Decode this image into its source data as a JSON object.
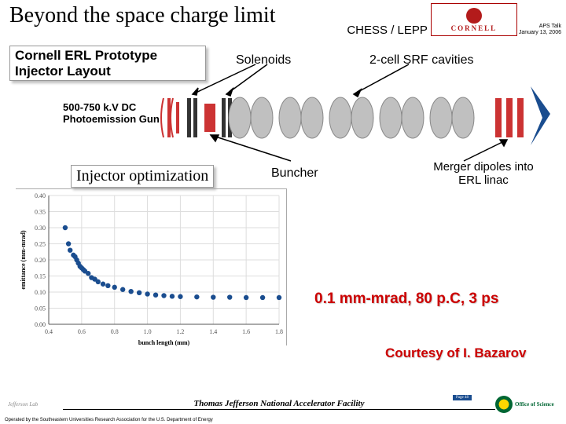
{
  "header": {
    "title": "Beyond the space charge limit",
    "chess": "CHESS / LEPP",
    "cornell": "CORNELL",
    "aps_line1": "APS Talk",
    "aps_line2": "January 13, 2006"
  },
  "labels": {
    "erl_title": "Cornell ERL Prototype Injector Layout",
    "solenoids": "Solenoids",
    "srf": "2-cell SRF cavities",
    "gun": "500-750 k.V DC Photoemission Gun",
    "optim": "Injector optimization",
    "buncher": "Buncher",
    "merger": "Merger dipoles into ERL linac",
    "result": "0.1 mm-mrad, 80 p.C, 3 ps",
    "courtesy": "Courtesy of I. Bazarov"
  },
  "chart": {
    "xlabel": "bunch length (mm)",
    "ylabel": "emittance (mm-mrad)",
    "xlim": [
      0.4,
      1.8
    ],
    "xtick_step": 0.2,
    "ylim": [
      0.0,
      0.4
    ],
    "ytick_step": 0.05,
    "points": [
      [
        0.5,
        0.3
      ],
      [
        0.52,
        0.25
      ],
      [
        0.53,
        0.23
      ],
      [
        0.55,
        0.215
      ],
      [
        0.56,
        0.21
      ],
      [
        0.57,
        0.2
      ],
      [
        0.58,
        0.19
      ],
      [
        0.59,
        0.18
      ],
      [
        0.6,
        0.175
      ],
      [
        0.61,
        0.17
      ],
      [
        0.62,
        0.165
      ],
      [
        0.64,
        0.158
      ],
      [
        0.66,
        0.145
      ],
      [
        0.68,
        0.14
      ],
      [
        0.7,
        0.132
      ],
      [
        0.73,
        0.125
      ],
      [
        0.76,
        0.12
      ],
      [
        0.8,
        0.115
      ],
      [
        0.85,
        0.108
      ],
      [
        0.9,
        0.102
      ],
      [
        0.95,
        0.098
      ],
      [
        1.0,
        0.094
      ],
      [
        1.05,
        0.091
      ],
      [
        1.1,
        0.089
      ],
      [
        1.15,
        0.087
      ],
      [
        1.2,
        0.086
      ],
      [
        1.3,
        0.085
      ],
      [
        1.4,
        0.084
      ],
      [
        1.5,
        0.084
      ],
      [
        1.6,
        0.083
      ],
      [
        1.7,
        0.083
      ],
      [
        1.8,
        0.083
      ]
    ],
    "point_color": "#1a4d8f",
    "grid_color": "#dddddd",
    "axis_color": "#555555",
    "label_fontsize": 8
  },
  "diagram": {
    "gun_color": "#cc3333",
    "solenoid_color": "#333333",
    "buncher_color": "#1a4d8f",
    "cavity_fill": "#c0c0c0",
    "cavity_stroke": "#888888",
    "dipole_color": "#cc3333",
    "arrow_color": "#000000"
  },
  "footer": {
    "center": "Thomas Jefferson National Accelerator Facility",
    "sub": "Operated by the Southeastern Universities Research Association for the U.S. Department of Energy",
    "jlab": "Jefferson Lab",
    "doe": "Office of Science",
    "page": "Page 48"
  }
}
